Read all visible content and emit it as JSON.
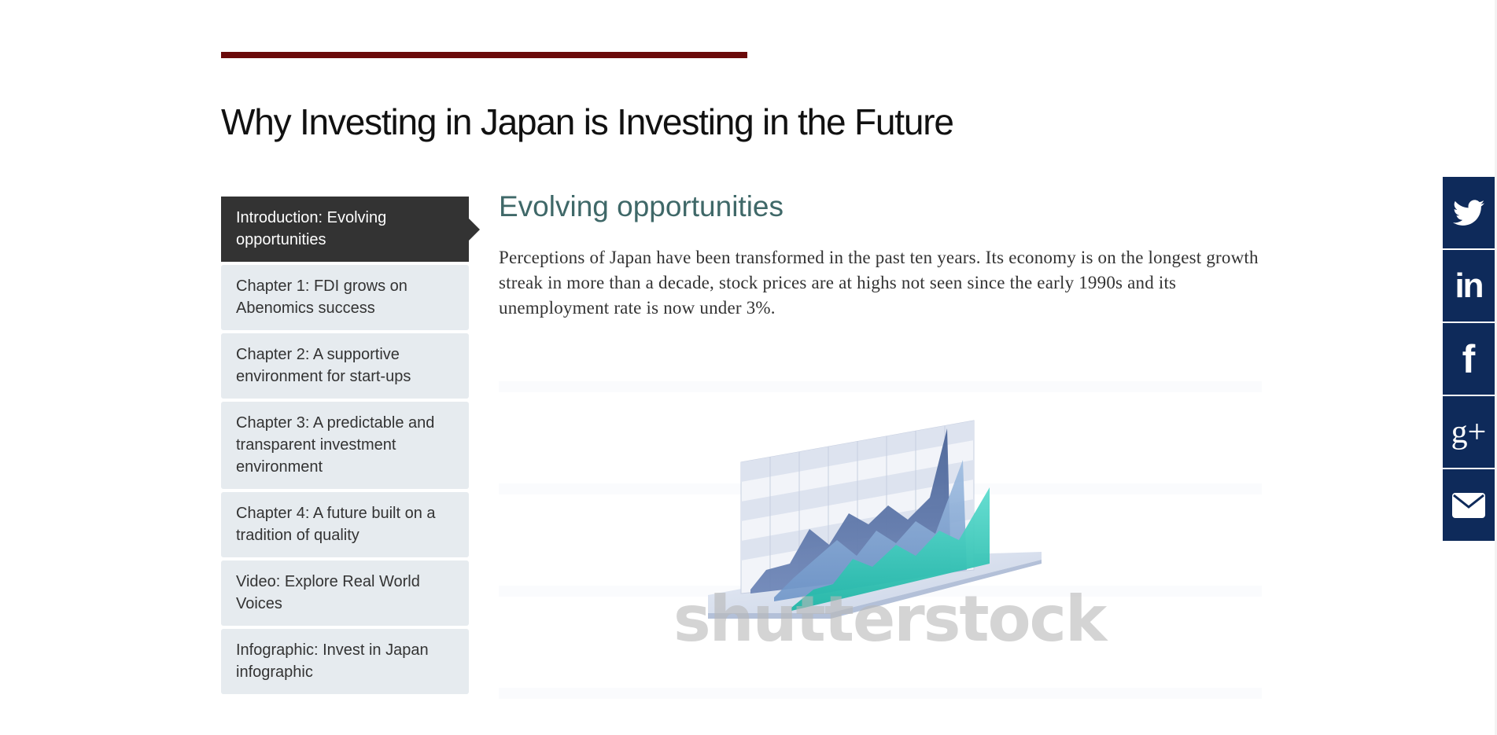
{
  "page": {
    "title": "Why Investing in Japan is Investing in the Future"
  },
  "nav": {
    "items": [
      {
        "label": "Introduction: Evolving opportunities",
        "active": true
      },
      {
        "label": "Chapter 1: FDI grows on Abenomics success",
        "active": false
      },
      {
        "label": "Chapter 2: A supportive environment for start-ups",
        "active": false
      },
      {
        "label": "Chapter 3: A predictable and transparent investment environment",
        "active": false
      },
      {
        "label": "Chapter 4: A future built on a tradition of quality",
        "active": false
      },
      {
        "label": "Video: Explore Real World Voices",
        "active": false
      },
      {
        "label": "Infographic: Invest in Japan infographic",
        "active": false
      }
    ]
  },
  "content": {
    "heading": "Evolving opportunities",
    "intro": "Perceptions of Japan have been transformed in the past ten years. Its economy is on the longest growth streak in more than a decade, stock prices are at highs not seen since the early 1990s and its unemployment rate is now under 3%.",
    "image": {
      "watermark": "shutterstock",
      "icon": "stock-chart-illustration"
    }
  },
  "share": {
    "items": [
      {
        "name": "twitter-icon"
      },
      {
        "name": "linkedin-icon",
        "glyph": "in"
      },
      {
        "name": "facebook-icon",
        "glyph": "f"
      },
      {
        "name": "google-plus-icon",
        "glyph": "g+"
      },
      {
        "name": "email-icon"
      }
    ]
  },
  "colors": {
    "accent_rule": "#6b0a0a",
    "heading": "#3f6868",
    "nav_active": "#333333",
    "nav_inactive": "#e6ebef",
    "share_bar": "#0e2a5a"
  }
}
